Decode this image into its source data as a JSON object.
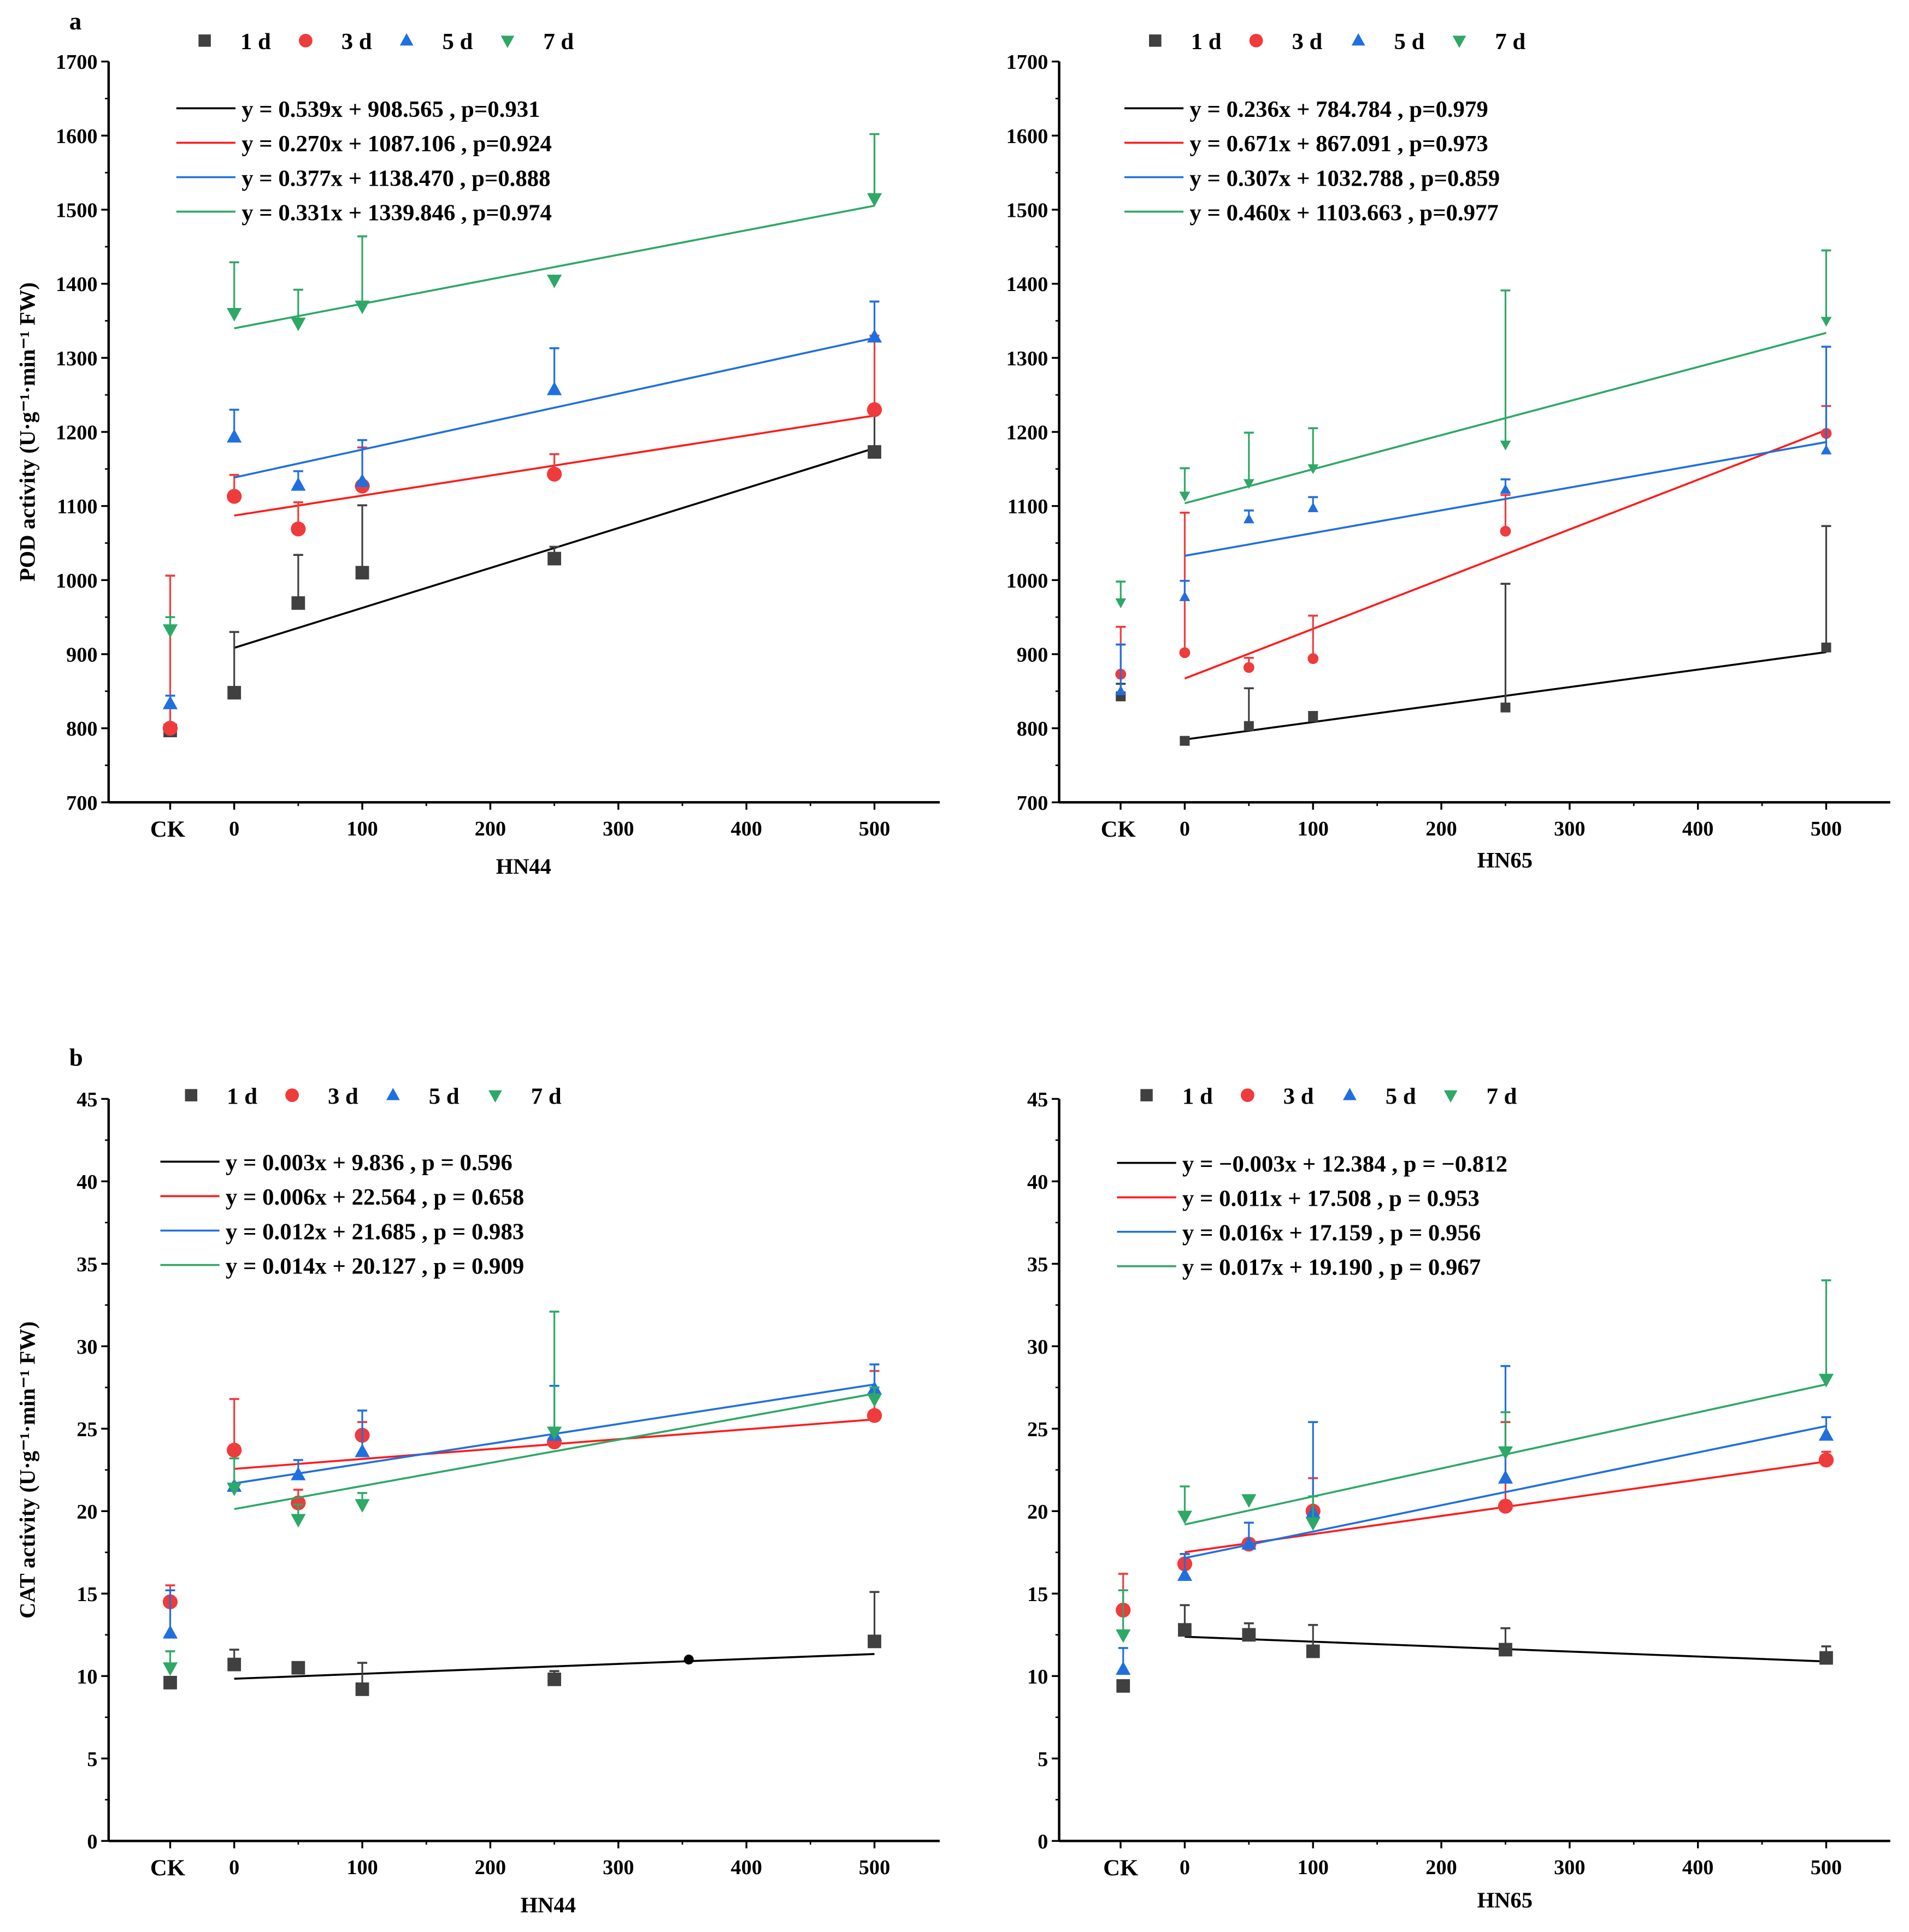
{
  "panel_labels": [
    "a",
    "b"
  ],
  "series_colors": {
    "1 d": "#404040",
    "3 d": "#ef3b3b",
    "5 d": "#1f6fe0",
    "7 d": "#2ea866"
  },
  "chart_data": [
    {
      "type": "scatter",
      "panel": "a-left",
      "xlabel": "HN44",
      "ylabel": "POD activity (U·g⁻¹·min⁻¹ FW)",
      "ylim": [
        700,
        1700
      ],
      "yticks": [
        700,
        800,
        900,
        1000,
        1100,
        1200,
        1300,
        1400,
        1500,
        1600,
        1700
      ],
      "xlim": [
        0,
        500
      ],
      "xticks": [
        0,
        100,
        200,
        300,
        400,
        500
      ],
      "control_label": "CK",
      "x": [
        "CK",
        0,
        50,
        100,
        250,
        500
      ],
      "legend": [
        "1 d",
        "3 d",
        "5 d",
        "7 d"
      ],
      "series": [
        {
          "name": "1 d",
          "marker": "square",
          "values": [
            797,
            848,
            969,
            1010,
            1029,
            1173
          ],
          "err_upper": [
            797,
            930,
            1034,
            1101,
            1045,
            1228
          ],
          "fit": {
            "slope": 0.539,
            "intercept": 908.565,
            "label": "y = 0.539x + 908.565 , p=0.931"
          }
        },
        {
          "name": "3 d",
          "marker": "circle",
          "values": [
            800,
            1113,
            1069,
            1127,
            1143,
            1230
          ],
          "err_upper": [
            1006,
            1142,
            1105,
            1179,
            1170,
            1330
          ],
          "fit": {
            "slope": 0.27,
            "intercept": 1087.106,
            "label": "y = 0.270x + 1087.106 , p=0.924"
          }
        },
        {
          "name": "5 d",
          "marker": "triangle-up",
          "values": [
            833,
            1193,
            1128,
            1133,
            1257,
            1328
          ],
          "err_upper": [
            844,
            1230,
            1147,
            1189,
            1313,
            1376
          ],
          "fit": {
            "slope": 0.377,
            "intercept": 1138.47,
            "label": "y = 0.377x + 1138.470 , p=0.888"
          }
        },
        {
          "name": "7 d",
          "marker": "triangle-down",
          "values": [
            933,
            1360,
            1347,
            1370,
            1405,
            1515
          ],
          "err_upper": [
            950,
            1429,
            1392,
            1464,
            1405,
            1602
          ],
          "fit": {
            "slope": 0.331,
            "intercept": 1339.846,
            "label": "y = 0.331x + 1339.846 , p=0.974"
          }
        }
      ]
    },
    {
      "type": "scatter",
      "panel": "a-right",
      "xlabel": "HN65",
      "ylabel": "",
      "ylim": [
        700,
        1700
      ],
      "yticks": [
        700,
        800,
        900,
        1000,
        1100,
        1200,
        1300,
        1400,
        1500,
        1600,
        1700
      ],
      "xlim": [
        0,
        500
      ],
      "xticks": [
        0,
        100,
        200,
        300,
        400,
        500
      ],
      "control_label": "CK",
      "x": [
        "CK",
        0,
        50,
        100,
        250,
        500
      ],
      "legend": [
        "1 d",
        "3 d",
        "5 d",
        "7 d"
      ],
      "series": [
        {
          "name": "1 d",
          "marker": "square",
          "values": [
            843,
            783,
            803,
            815,
            828,
            909
          ],
          "err_upper": [
            860,
            787,
            854,
            822,
            995,
            1073
          ],
          "fit": {
            "slope": 0.236,
            "intercept": 784.784,
            "label": "y = 0.236x + 784.784 , p=0.979"
          }
        },
        {
          "name": "3 d",
          "marker": "circle",
          "values": [
            873,
            902,
            882,
            894,
            1066,
            1198
          ],
          "err_upper": [
            937,
            1091,
            895,
            952,
            1115,
            1235
          ],
          "fit": {
            "slope": 0.671,
            "intercept": 867.091,
            "label": "y = 0.671x + 867.091 , p=0.973"
          }
        },
        {
          "name": "5 d",
          "marker": "triangle-up",
          "values": [
            850,
            977,
            1082,
            1097,
            1122,
            1175
          ],
          "err_upper": [
            913,
            999,
            1094,
            1112,
            1136,
            1315
          ],
          "fit": {
            "slope": 0.307,
            "intercept": 1032.788,
            "label": "y = 0.307x + 1032.788 , p=0.859"
          }
        },
        {
          "name": "7 d",
          "marker": "triangle-down",
          "values": [
            970,
            1114,
            1131,
            1151,
            1183,
            1350
          ],
          "err_upper": [
            998,
            1151,
            1199,
            1205,
            1391,
            1445
          ],
          "fit": {
            "slope": 0.46,
            "intercept": 1103.663,
            "label": "y = 0.460x + 1103.663 , p=0.977"
          }
        }
      ]
    },
    {
      "type": "scatter",
      "panel": "b-left",
      "xlabel": "HN44",
      "ylabel": "CAT activity (U·g⁻¹·min⁻¹ FW)",
      "ylim": [
        0,
        45
      ],
      "yticks": [
        0,
        5,
        10,
        15,
        20,
        25,
        30,
        35,
        40,
        45
      ],
      "xlim": [
        0,
        500
      ],
      "xticks": [
        0,
        100,
        200,
        300,
        400,
        500
      ],
      "control_label": "CK",
      "x": [
        "CK",
        0,
        50,
        100,
        250,
        500
      ],
      "legend": [
        "1 d",
        "3 d",
        "5 d",
        "7 d"
      ],
      "extra_point": [
        355,
        11.0
      ],
      "series": [
        {
          "name": "1 d",
          "marker": "square",
          "values": [
            9.6,
            10.7,
            10.5,
            9.2,
            9.8,
            12.1
          ],
          "err_upper": [
            9.6,
            11.6,
            10.5,
            10.8,
            10.3,
            15.1
          ],
          "fit": {
            "slope": 0.003,
            "intercept": 9.836,
            "label": "y = 0.003x + 9.836 , p = 0.596"
          }
        },
        {
          "name": "3 d",
          "marker": "circle",
          "values": [
            14.5,
            23.7,
            20.5,
            24.6,
            24.2,
            25.8
          ],
          "err_upper": [
            15.5,
            26.8,
            21.3,
            25.4,
            24.9,
            28.5
          ],
          "fit": {
            "slope": 0.006,
            "intercept": 22.564,
            "label": "y = 0.006x + 22.564 , p = 0.658"
          }
        },
        {
          "name": "5 d",
          "marker": "triangle-up",
          "values": [
            12.6,
            21.5,
            22.2,
            23.6,
            24.6,
            27.4
          ],
          "err_upper": [
            15.2,
            21.5,
            23.1,
            26.1,
            27.6,
            28.9
          ],
          "fit": {
            "slope": 0.012,
            "intercept": 21.685,
            "label": "y = 0.012x + 21.685 , p = 0.983"
          }
        },
        {
          "name": "7 d",
          "marker": "triangle-down",
          "values": [
            10.5,
            21.4,
            19.5,
            20.4,
            24.8,
            26.8
          ],
          "err_upper": [
            11.5,
            23.2,
            20.4,
            21.1,
            32.1,
            27.5
          ],
          "fit": {
            "slope": 0.014,
            "intercept": 20.127,
            "label": "y = 0.014x + 20.127 , p = 0.909"
          }
        }
      ]
    },
    {
      "type": "scatter",
      "panel": "b-right",
      "xlabel": "HN65",
      "ylabel": "",
      "ylim": [
        0,
        45
      ],
      "yticks": [
        0,
        5,
        10,
        15,
        20,
        25,
        30,
        35,
        40,
        45
      ],
      "xlim": [
        0,
        500
      ],
      "xticks": [
        0,
        100,
        200,
        300,
        400,
        500
      ],
      "control_label": "CK",
      "x": [
        "CK",
        0,
        50,
        100,
        250,
        500
      ],
      "legend": [
        "1 d",
        "3 d",
        "5 d",
        "7 d"
      ],
      "series": [
        {
          "name": "1 d",
          "marker": "square",
          "values": [
            9.4,
            12.8,
            12.5,
            11.5,
            11.6,
            11.1
          ],
          "err_upper": [
            9.4,
            14.3,
            13.2,
            13.1,
            12.9,
            11.8
          ],
          "fit": {
            "slope": -0.003,
            "intercept": 12.384,
            "label": "y = −0.003x + 12.384 , p = −0.812"
          }
        },
        {
          "name": "3 d",
          "marker": "circle",
          "values": [
            14.0,
            16.8,
            18.0,
            20.0,
            20.3,
            23.1
          ],
          "err_upper": [
            16.2,
            17.4,
            18.3,
            22.0,
            25.4,
            23.6
          ],
          "fit": {
            "slope": 0.011,
            "intercept": 17.508,
            "label": "y = 0.011x + 17.508 , p = 0.953"
          }
        },
        {
          "name": "5 d",
          "marker": "triangle-up",
          "values": [
            10.4,
            16.1,
            18.0,
            19.9,
            22.0,
            24.6
          ],
          "err_upper": [
            11.7,
            17.4,
            19.3,
            25.4,
            28.8,
            25.7
          ],
          "fit": {
            "slope": 0.016,
            "intercept": 17.159,
            "label": "y = 0.016x + 17.159 , p = 0.956"
          }
        },
        {
          "name": "7 d",
          "marker": "triangle-down",
          "values": [
            12.5,
            19.7,
            20.7,
            19.3,
            23.6,
            28.0
          ],
          "err_upper": [
            15.2,
            21.5,
            20.9,
            20.9,
            26.0,
            34.0
          ],
          "fit": {
            "slope": 0.017,
            "intercept": 19.19,
            "label": "y = 0.017x + 19.190 , p = 0.967"
          }
        }
      ]
    }
  ]
}
